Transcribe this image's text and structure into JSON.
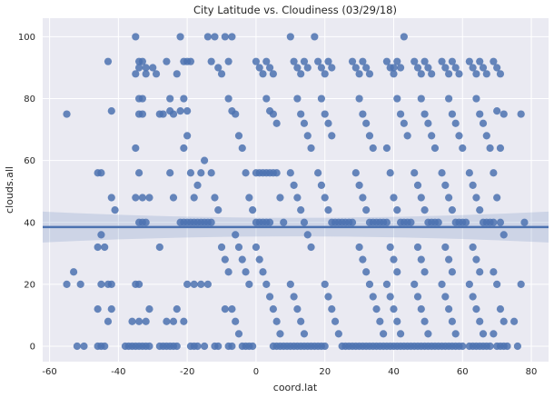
{
  "chart_data": {
    "type": "scatter",
    "title": "City Latitude vs. Cloudiness (03/29/18)",
    "xlabel": "coord.lat",
    "ylabel": "clouds.all",
    "xlim": [
      -62,
      85
    ],
    "ylim": [
      -5,
      106
    ],
    "x_ticks": [
      -60,
      -40,
      -20,
      0,
      20,
      40,
      60,
      80
    ],
    "y_ticks": [
      0,
      20,
      40,
      60,
      80,
      100
    ],
    "grid": true,
    "legend": "none",
    "point_color": "#4C72B0",
    "background_color": "#EAEAF2",
    "regression": {
      "intercept": 38.5,
      "slope": 0.0
    },
    "confidence_band": {
      "left": [
        33.5,
        43.5
      ],
      "center": [
        37.0,
        40.0
      ],
      "right": [
        33.5,
        43.5
      ]
    },
    "points": [
      [
        -55,
        75
      ],
      [
        -55,
        20
      ],
      [
        -53,
        24
      ],
      [
        -52,
        0
      ],
      [
        -51,
        20
      ],
      [
        -50,
        0
      ],
      [
        -46,
        56
      ],
      [
        -45,
        56
      ],
      [
        -46,
        32
      ],
      [
        -45,
        36
      ],
      [
        -46,
        0
      ],
      [
        -45,
        0
      ],
      [
        -44,
        0
      ],
      [
        -46,
        12
      ],
      [
        -43,
        8
      ],
      [
        -45,
        20
      ],
      [
        -44,
        32
      ],
      [
        -43,
        92
      ],
      [
        -42,
        76
      ],
      [
        -42,
        48
      ],
      [
        -41,
        44
      ],
      [
        -42,
        20
      ],
      [
        -42,
        12
      ],
      [
        -43,
        20
      ],
      [
        -38,
        0
      ],
      [
        -37,
        0
      ],
      [
        -36,
        0
      ],
      [
        -35,
        0
      ],
      [
        -34,
        0
      ],
      [
        -33,
        0
      ],
      [
        -32,
        0
      ],
      [
        -31,
        0
      ],
      [
        -36,
        8
      ],
      [
        -34,
        8
      ],
      [
        -32,
        8
      ],
      [
        -35,
        100
      ],
      [
        -34,
        92
      ],
      [
        -33,
        92
      ],
      [
        -34,
        90
      ],
      [
        -35,
        88
      ],
      [
        -32,
        90
      ],
      [
        -34,
        80
      ],
      [
        -33,
        80
      ],
      [
        -34,
        75
      ],
      [
        -33,
        75
      ],
      [
        -35,
        64
      ],
      [
        -34,
        56
      ],
      [
        -35,
        48
      ],
      [
        -33,
        48
      ],
      [
        -31,
        48
      ],
      [
        -34,
        40
      ],
      [
        -33,
        40
      ],
      [
        -32,
        40
      ],
      [
        -35,
        20
      ],
      [
        -34,
        20
      ],
      [
        -31,
        12
      ],
      [
        -32,
        88
      ],
      [
        -30,
        90
      ],
      [
        -29,
        88
      ],
      [
        -28,
        75
      ],
      [
        -27,
        75
      ],
      [
        -26,
        92
      ],
      [
        -25,
        80
      ],
      [
        -25,
        76
      ],
      [
        -24,
        75
      ],
      [
        -23,
        88
      ],
      [
        -28,
        0
      ],
      [
        -27,
        0
      ],
      [
        -26,
        0
      ],
      [
        -25,
        0
      ],
      [
        -24,
        0
      ],
      [
        -23,
        0
      ],
      [
        -26,
        8
      ],
      [
        -24,
        8
      ],
      [
        -28,
        32
      ],
      [
        -25,
        56
      ],
      [
        -24,
        48
      ],
      [
        -23,
        12
      ],
      [
        -22,
        100
      ],
      [
        -21,
        92
      ],
      [
        -20,
        92
      ],
      [
        -19,
        92
      ],
      [
        -21,
        80
      ],
      [
        -20,
        76
      ],
      [
        -22,
        76
      ],
      [
        -20,
        68
      ],
      [
        -21,
        64
      ],
      [
        -19,
        56
      ],
      [
        -22,
        40
      ],
      [
        -21,
        40
      ],
      [
        -20,
        40
      ],
      [
        -19,
        40
      ],
      [
        -18,
        40
      ],
      [
        -17,
        40
      ],
      [
        -16,
        40
      ],
      [
        -15,
        40
      ],
      [
        -14,
        40
      ],
      [
        -13,
        40
      ],
      [
        -20,
        20
      ],
      [
        -18,
        20
      ],
      [
        -16,
        20
      ],
      [
        -14,
        20
      ],
      [
        -21,
        8
      ],
      [
        -19,
        0
      ],
      [
        -18,
        0
      ],
      [
        -17,
        0
      ],
      [
        -15,
        0
      ],
      [
        -12,
        0
      ],
      [
        -11,
        0
      ],
      [
        -18,
        48
      ],
      [
        -17,
        52
      ],
      [
        -16,
        56
      ],
      [
        -15,
        60
      ],
      [
        -13,
        56
      ],
      [
        -12,
        48
      ],
      [
        -11,
        44
      ],
      [
        -10,
        32
      ],
      [
        -9,
        28
      ],
      [
        -8,
        24
      ],
      [
        -14,
        100
      ],
      [
        -13,
        92
      ],
      [
        -12,
        100
      ],
      [
        -11,
        90
      ],
      [
        -10,
        88
      ],
      [
        -9,
        100
      ],
      [
        -8,
        92
      ],
      [
        -7,
        100
      ],
      [
        -8,
        80
      ],
      [
        -7,
        76
      ],
      [
        -6,
        75
      ],
      [
        -5,
        68
      ],
      [
        -4,
        64
      ],
      [
        -3,
        56
      ],
      [
        -2,
        48
      ],
      [
        -1,
        44
      ],
      [
        -6,
        36
      ],
      [
        -5,
        32
      ],
      [
        -4,
        28
      ],
      [
        -3,
        24
      ],
      [
        -2,
        20
      ],
      [
        -9,
        12
      ],
      [
        -7,
        12
      ],
      [
        -6,
        8
      ],
      [
        -5,
        4
      ],
      [
        -4,
        0
      ],
      [
        -3,
        0
      ],
      [
        -2,
        0
      ],
      [
        -1,
        0
      ],
      [
        -8,
        0
      ],
      [
        -7,
        0
      ],
      [
        0,
        92
      ],
      [
        1,
        90
      ],
      [
        2,
        88
      ],
      [
        3,
        92
      ],
      [
        4,
        90
      ],
      [
        5,
        88
      ],
      [
        3,
        80
      ],
      [
        4,
        76
      ],
      [
        5,
        75
      ],
      [
        6,
        72
      ],
      [
        0,
        56
      ],
      [
        1,
        56
      ],
      [
        2,
        56
      ],
      [
        3,
        56
      ],
      [
        4,
        56
      ],
      [
        5,
        56
      ],
      [
        6,
        56
      ],
      [
        7,
        48
      ],
      [
        8,
        40
      ],
      [
        0,
        40
      ],
      [
        1,
        40
      ],
      [
        2,
        40
      ],
      [
        3,
        40
      ],
      [
        4,
        40
      ],
      [
        0,
        32
      ],
      [
        1,
        28
      ],
      [
        2,
        24
      ],
      [
        3,
        20
      ],
      [
        4,
        16
      ],
      [
        5,
        12
      ],
      [
        6,
        8
      ],
      [
        7,
        4
      ],
      [
        5,
        0
      ],
      [
        6,
        0
      ],
      [
        7,
        0
      ],
      [
        8,
        0
      ],
      [
        9,
        0
      ],
      [
        10,
        0
      ],
      [
        10,
        100
      ],
      [
        11,
        92
      ],
      [
        12,
        90
      ],
      [
        13,
        88
      ],
      [
        14,
        92
      ],
      [
        15,
        90
      ],
      [
        12,
        80
      ],
      [
        13,
        75
      ],
      [
        14,
        72
      ],
      [
        15,
        68
      ],
      [
        16,
        64
      ],
      [
        10,
        56
      ],
      [
        11,
        52
      ],
      [
        12,
        48
      ],
      [
        13,
        44
      ],
      [
        14,
        40
      ],
      [
        15,
        36
      ],
      [
        16,
        32
      ],
      [
        10,
        20
      ],
      [
        11,
        16
      ],
      [
        12,
        12
      ],
      [
        13,
        8
      ],
      [
        14,
        4
      ],
      [
        11,
        0
      ],
      [
        12,
        0
      ],
      [
        13,
        0
      ],
      [
        14,
        0
      ],
      [
        15,
        0
      ],
      [
        16,
        0
      ],
      [
        17,
        0
      ],
      [
        18,
        0
      ],
      [
        19,
        0
      ],
      [
        20,
        0
      ],
      [
        17,
        100
      ],
      [
        18,
        92
      ],
      [
        19,
        90
      ],
      [
        20,
        88
      ],
      [
        21,
        92
      ],
      [
        22,
        90
      ],
      [
        19,
        80
      ],
      [
        20,
        75
      ],
      [
        21,
        72
      ],
      [
        22,
        68
      ],
      [
        18,
        56
      ],
      [
        19,
        52
      ],
      [
        20,
        48
      ],
      [
        21,
        44
      ],
      [
        22,
        40
      ],
      [
        23,
        40
      ],
      [
        24,
        40
      ],
      [
        25,
        40
      ],
      [
        26,
        40
      ],
      [
        27,
        40
      ],
      [
        28,
        40
      ],
      [
        20,
        20
      ],
      [
        21,
        16
      ],
      [
        22,
        12
      ],
      [
        23,
        8
      ],
      [
        24,
        4
      ],
      [
        25,
        0
      ],
      [
        26,
        0
      ],
      [
        27,
        0
      ],
      [
        28,
        0
      ],
      [
        29,
        0
      ],
      [
        30,
        0
      ],
      [
        28,
        92
      ],
      [
        29,
        90
      ],
      [
        30,
        88
      ],
      [
        31,
        92
      ],
      [
        32,
        90
      ],
      [
        33,
        88
      ],
      [
        30,
        80
      ],
      [
        31,
        75
      ],
      [
        32,
        72
      ],
      [
        33,
        68
      ],
      [
        34,
        64
      ],
      [
        29,
        56
      ],
      [
        30,
        52
      ],
      [
        31,
        48
      ],
      [
        32,
        44
      ],
      [
        33,
        40
      ],
      [
        34,
        40
      ],
      [
        35,
        40
      ],
      [
        36,
        40
      ],
      [
        37,
        40
      ],
      [
        38,
        40
      ],
      [
        30,
        32
      ],
      [
        31,
        28
      ],
      [
        32,
        24
      ],
      [
        33,
        20
      ],
      [
        34,
        16
      ],
      [
        35,
        12
      ],
      [
        36,
        8
      ],
      [
        37,
        4
      ],
      [
        31,
        0
      ],
      [
        32,
        0
      ],
      [
        33,
        0
      ],
      [
        34,
        0
      ],
      [
        35,
        0
      ],
      [
        36,
        0
      ],
      [
        38,
        92
      ],
      [
        39,
        90
      ],
      [
        40,
        90
      ],
      [
        41,
        92
      ],
      [
        42,
        90
      ],
      [
        43,
        100
      ],
      [
        40,
        88
      ],
      [
        41,
        80
      ],
      [
        42,
        75
      ],
      [
        43,
        72
      ],
      [
        44,
        68
      ],
      [
        38,
        64
      ],
      [
        39,
        56
      ],
      [
        40,
        48
      ],
      [
        41,
        44
      ],
      [
        42,
        40
      ],
      [
        43,
        40
      ],
      [
        44,
        40
      ],
      [
        45,
        40
      ],
      [
        39,
        32
      ],
      [
        40,
        28
      ],
      [
        41,
        24
      ],
      [
        38,
        20
      ],
      [
        39,
        16
      ],
      [
        40,
        12
      ],
      [
        41,
        8
      ],
      [
        42,
        4
      ],
      [
        37,
        0
      ],
      [
        38,
        0
      ],
      [
        39,
        0
      ],
      [
        40,
        0
      ],
      [
        41,
        0
      ],
      [
        42,
        0
      ],
      [
        43,
        0
      ],
      [
        44,
        0
      ],
      [
        45,
        0
      ],
      [
        46,
        92
      ],
      [
        47,
        90
      ],
      [
        48,
        88
      ],
      [
        49,
        92
      ],
      [
        50,
        90
      ],
      [
        51,
        88
      ],
      [
        48,
        80
      ],
      [
        49,
        75
      ],
      [
        50,
        72
      ],
      [
        51,
        68
      ],
      [
        52,
        64
      ],
      [
        46,
        56
      ],
      [
        47,
        52
      ],
      [
        48,
        48
      ],
      [
        49,
        44
      ],
      [
        50,
        40
      ],
      [
        51,
        40
      ],
      [
        52,
        40
      ],
      [
        53,
        40
      ],
      [
        47,
        32
      ],
      [
        48,
        28
      ],
      [
        49,
        24
      ],
      [
        46,
        20
      ],
      [
        47,
        16
      ],
      [
        48,
        12
      ],
      [
        49,
        8
      ],
      [
        50,
        4
      ],
      [
        46,
        0
      ],
      [
        47,
        0
      ],
      [
        48,
        0
      ],
      [
        49,
        0
      ],
      [
        50,
        0
      ],
      [
        51,
        0
      ],
      [
        52,
        0
      ],
      [
        53,
        0
      ],
      [
        54,
        92
      ],
      [
        55,
        90
      ],
      [
        56,
        88
      ],
      [
        57,
        92
      ],
      [
        58,
        90
      ],
      [
        59,
        88
      ],
      [
        56,
        80
      ],
      [
        57,
        75
      ],
      [
        58,
        72
      ],
      [
        59,
        68
      ],
      [
        60,
        64
      ],
      [
        54,
        56
      ],
      [
        55,
        52
      ],
      [
        56,
        48
      ],
      [
        57,
        44
      ],
      [
        58,
        40
      ],
      [
        59,
        40
      ],
      [
        60,
        40
      ],
      [
        61,
        40
      ],
      [
        55,
        32
      ],
      [
        56,
        28
      ],
      [
        57,
        24
      ],
      [
        54,
        20
      ],
      [
        55,
        16
      ],
      [
        56,
        12
      ],
      [
        57,
        8
      ],
      [
        58,
        4
      ],
      [
        54,
        0
      ],
      [
        55,
        0
      ],
      [
        56,
        0
      ],
      [
        57,
        0
      ],
      [
        58,
        0
      ],
      [
        59,
        0
      ],
      [
        60,
        0
      ],
      [
        62,
        92
      ],
      [
        63,
        90
      ],
      [
        64,
        88
      ],
      [
        65,
        92
      ],
      [
        66,
        90
      ],
      [
        67,
        88
      ],
      [
        64,
        80
      ],
      [
        65,
        75
      ],
      [
        66,
        72
      ],
      [
        67,
        68
      ],
      [
        68,
        64
      ],
      [
        62,
        56
      ],
      [
        63,
        52
      ],
      [
        64,
        48
      ],
      [
        65,
        44
      ],
      [
        66,
        40
      ],
      [
        67,
        40
      ],
      [
        68,
        40
      ],
      [
        69,
        40
      ],
      [
        63,
        32
      ],
      [
        64,
        28
      ],
      [
        65,
        24
      ],
      [
        62,
        20
      ],
      [
        63,
        16
      ],
      [
        64,
        12
      ],
      [
        65,
        8
      ],
      [
        66,
        4
      ],
      [
        62,
        0
      ],
      [
        63,
        0
      ],
      [
        64,
        0
      ],
      [
        65,
        0
      ],
      [
        66,
        0
      ],
      [
        67,
        0
      ],
      [
        68,
        0
      ],
      [
        69,
        92
      ],
      [
        70,
        90
      ],
      [
        71,
        88
      ],
      [
        72,
        75
      ],
      [
        70,
        76
      ],
      [
        71,
        64
      ],
      [
        69,
        56
      ],
      [
        70,
        48
      ],
      [
        71,
        40
      ],
      [
        72,
        36
      ],
      [
        69,
        24
      ],
      [
        70,
        20
      ],
      [
        71,
        12
      ],
      [
        72,
        8
      ],
      [
        69,
        4
      ],
      [
        70,
        0
      ],
      [
        71,
        0
      ],
      [
        72,
        0
      ],
      [
        73,
        0
      ],
      [
        77,
        75
      ],
      [
        78,
        40
      ],
      [
        77,
        20
      ],
      [
        76,
        0
      ],
      [
        75,
        8
      ]
    ]
  }
}
